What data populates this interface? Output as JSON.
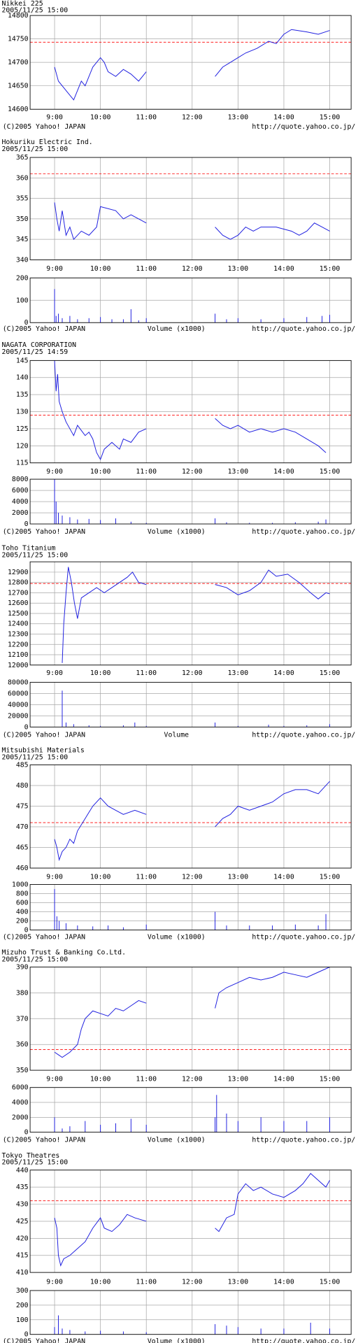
{
  "chart_data": [
    {
      "type": "line",
      "title": "Nikkei 225",
      "subtitle": "2005/11/25 15:00",
      "copyright": "(C)2005 Yahoo! JAPAN",
      "url": "http://quote.yahoo.co.jp/",
      "grid": true,
      "color": "#2020e0",
      "reference": 14743,
      "reference_color": "#ff0000",
      "xlim": [
        508,
        928
      ],
      "xticks": [
        {
          "value": 540,
          "label": "9:00"
        },
        {
          "value": 600,
          "label": "10:00"
        },
        {
          "value": 660,
          "label": "11:00"
        },
        {
          "value": 720,
          "label": "12:00"
        },
        {
          "value": 780,
          "label": "13:00"
        },
        {
          "value": 840,
          "label": "14:00"
        },
        {
          "value": 900,
          "label": "15:00"
        }
      ],
      "ylim": [
        14600,
        14800
      ],
      "yticks": [
        14600,
        14650,
        14700,
        14750,
        14800
      ],
      "x": [
        540,
        545,
        555,
        565,
        575,
        580,
        590,
        600,
        605,
        610,
        620,
        630,
        640,
        650,
        655,
        660,
        720,
        750,
        760,
        770,
        780,
        790,
        805,
        820,
        830,
        840,
        850,
        870,
        885,
        900
      ],
      "values": [
        14690,
        14660,
        14640,
        14620,
        14660,
        14650,
        14690,
        14710,
        14700,
        14680,
        14670,
        14685,
        14675,
        14660,
        14670,
        14680,
        null,
        14670,
        14690,
        14700,
        14710,
        14720,
        14730,
        14745,
        14740,
        14760,
        14770,
        14765,
        14760,
        14768
      ]
    },
    {
      "type": "line",
      "title": "Hokuriku Electric Ind.",
      "subtitle": "2005/11/25 15:00",
      "copyright": "(C)2005 Yahoo! JAPAN",
      "url": "http://quote.yahoo.co.jp/",
      "grid": true,
      "color": "#2020e0",
      "reference": 361,
      "reference_color": "#ff0000",
      "xlim": [
        508,
        928
      ],
      "xticks": [
        {
          "value": 540,
          "label": "9:00"
        },
        {
          "value": 600,
          "label": "10:00"
        },
        {
          "value": 660,
          "label": "11:00"
        },
        {
          "value": 720,
          "label": "12:00"
        },
        {
          "value": 780,
          "label": "13:00"
        },
        {
          "value": 840,
          "label": "14:00"
        },
        {
          "value": 900,
          "label": "15:00"
        }
      ],
      "ylim": [
        340,
        365
      ],
      "yticks": [
        340,
        345,
        350,
        355,
        360,
        365
      ],
      "x": [
        540,
        543,
        546,
        550,
        555,
        560,
        565,
        575,
        585,
        595,
        600,
        620,
        630,
        640,
        650,
        660,
        720,
        750,
        760,
        770,
        780,
        790,
        800,
        810,
        830,
        850,
        860,
        870,
        880,
        890,
        900
      ],
      "values": [
        354,
        350,
        347,
        352,
        346,
        348,
        345,
        347,
        346,
        348,
        353,
        352,
        350,
        351,
        350,
        349,
        null,
        348,
        346,
        345,
        346,
        348,
        347,
        348,
        348,
        347,
        346,
        347,
        349,
        348,
        347
      ],
      "volume": {
        "type": "bar",
        "label": "Volume (x1000)",
        "color": "#2020e0",
        "ylim": [
          0,
          200
        ],
        "yticks": [
          0,
          100,
          200
        ],
        "x": [
          540,
          542,
          545,
          550,
          560,
          570,
          585,
          600,
          615,
          630,
          640,
          650,
          660,
          750,
          765,
          780,
          810,
          840,
          870,
          890,
          900
        ],
        "values": [
          150,
          30,
          40,
          20,
          30,
          15,
          20,
          25,
          15,
          15,
          60,
          10,
          20,
          40,
          15,
          20,
          15,
          20,
          25,
          30,
          35
        ]
      }
    },
    {
      "type": "line",
      "title": "NAGATA CORPORATION",
      "subtitle": "2005/11/25 14:59",
      "copyright": "(C)2005 Yahoo! JAPAN",
      "url": "http://quote.yahoo.co.jp/",
      "grid": true,
      "color": "#2020e0",
      "reference": 129,
      "reference_color": "#ff0000",
      "xlim": [
        508,
        928
      ],
      "xticks": [
        {
          "value": 540,
          "label": "9:00"
        },
        {
          "value": 600,
          "label": "10:00"
        },
        {
          "value": 660,
          "label": "11:00"
        },
        {
          "value": 720,
          "label": "12:00"
        },
        {
          "value": 780,
          "label": "13:00"
        },
        {
          "value": 840,
          "label": "14:00"
        },
        {
          "value": 900,
          "label": "15:00"
        }
      ],
      "ylim": [
        115,
        145
      ],
      "yticks": [
        115,
        120,
        125,
        130,
        135,
        140,
        145
      ],
      "x": [
        540,
        542,
        544,
        546,
        550,
        555,
        560,
        565,
        570,
        580,
        585,
        590,
        595,
        600,
        605,
        615,
        625,
        630,
        640,
        650,
        660,
        720,
        750,
        760,
        770,
        780,
        795,
        810,
        825,
        840,
        855,
        870,
        885,
        895
      ],
      "values": [
        145,
        136,
        141,
        133,
        130,
        127,
        125,
        123,
        126,
        123,
        124,
        122,
        118,
        116,
        119,
        121,
        119,
        122,
        121,
        124,
        125,
        null,
        128,
        126,
        125,
        126,
        124,
        125,
        124,
        125,
        124,
        122,
        120,
        118
      ],
      "volume": {
        "type": "bar",
        "label": "Volume (x1000)",
        "color": "#2020e0",
        "ylim": [
          0,
          8000
        ],
        "yticks": [
          0,
          2000,
          4000,
          6000,
          8000
        ],
        "x": [
          540,
          542,
          545,
          550,
          560,
          570,
          585,
          600,
          620,
          640,
          660,
          750,
          765,
          795,
          825,
          855,
          885,
          895
        ],
        "values": [
          8000,
          4000,
          2000,
          1500,
          1200,
          800,
          900,
          700,
          1000,
          400,
          200,
          1000,
          300,
          200,
          200,
          300,
          400,
          800
        ]
      }
    },
    {
      "type": "line",
      "title": "Toho Titanium",
      "subtitle": "2005/11/25 15:00",
      "copyright": "(C)2005 Yahoo! JAPAN",
      "url": "http://quote.yahoo.co.jp/",
      "grid": true,
      "color": "#2020e0",
      "reference": 12790,
      "reference_color": "#ff0000",
      "xlim": [
        508,
        928
      ],
      "xticks": [
        {
          "value": 540,
          "label": "9:00"
        },
        {
          "value": 600,
          "label": "10:00"
        },
        {
          "value": 660,
          "label": "11:00"
        },
        {
          "value": 720,
          "label": "12:00"
        },
        {
          "value": 780,
          "label": "13:00"
        },
        {
          "value": 840,
          "label": "14:00"
        },
        {
          "value": 900,
          "label": "15:00"
        }
      ],
      "ylim": [
        12000,
        13000
      ],
      "yticks": [
        12000,
        12100,
        12200,
        12300,
        12400,
        12500,
        12600,
        12700,
        12800,
        12900
      ],
      "x": [
        550,
        552,
        555,
        558,
        562,
        566,
        570,
        575,
        585,
        595,
        605,
        615,
        625,
        635,
        642,
        650,
        660,
        720,
        750,
        765,
        780,
        795,
        810,
        820,
        830,
        845,
        860,
        875,
        885,
        895,
        900
      ],
      "values": [
        12020,
        12400,
        12700,
        12950,
        12800,
        12600,
        12450,
        12650,
        12700,
        12750,
        12700,
        12750,
        12800,
        12850,
        12900,
        12800,
        12780,
        null,
        12780,
        12750,
        12680,
        12720,
        12800,
        12920,
        12860,
        12880,
        12800,
        12700,
        12640,
        12700,
        12690
      ],
      "volume": {
        "type": "bar",
        "label": "Volume",
        "color": "#2020e0",
        "ylim": [
          0,
          80000
        ],
        "yticks": [
          0,
          20000,
          40000,
          60000,
          80000
        ],
        "x": [
          550,
          555,
          565,
          585,
          600,
          630,
          645,
          660,
          750,
          780,
          820,
          840,
          870,
          900
        ],
        "values": [
          65000,
          8000,
          5000,
          3000,
          2000,
          3000,
          8000,
          2000,
          8000,
          2000,
          4000,
          2000,
          3000,
          5000
        ]
      }
    },
    {
      "type": "line",
      "title": "Mitsubishi Materials",
      "subtitle": "2005/11/25 15:00",
      "copyright": "(C)2005 Yahoo! JAPAN",
      "url": "http://quote.yahoo.co.jp/",
      "grid": true,
      "color": "#2020e0",
      "reference": 471,
      "reference_color": "#ff0000",
      "xlim": [
        508,
        928
      ],
      "xticks": [
        {
          "value": 540,
          "label": "9:00"
        },
        {
          "value": 600,
          "label": "10:00"
        },
        {
          "value": 660,
          "label": "11:00"
        },
        {
          "value": 720,
          "label": "12:00"
        },
        {
          "value": 780,
          "label": "13:00"
        },
        {
          "value": 840,
          "label": "14:00"
        },
        {
          "value": 900,
          "label": "15:00"
        }
      ],
      "ylim": [
        460,
        485
      ],
      "yticks": [
        460,
        465,
        470,
        475,
        480,
        485
      ],
      "x": [
        540,
        543,
        546,
        550,
        555,
        560,
        565,
        570,
        580,
        590,
        600,
        610,
        620,
        630,
        645,
        660,
        720,
        750,
        760,
        770,
        780,
        795,
        810,
        825,
        840,
        855,
        870,
        885,
        895,
        900
      ],
      "values": [
        467,
        465,
        462,
        464,
        465,
        467,
        466,
        469,
        472,
        475,
        477,
        475,
        474,
        473,
        474,
        473,
        null,
        470,
        472,
        473,
        475,
        474,
        475,
        476,
        478,
        479,
        479,
        478,
        480,
        481
      ],
      "volume": {
        "type": "bar",
        "label": "Volume (x1000)",
        "color": "#2020e0",
        "ylim": [
          0,
          1000
        ],
        "yticks": [
          0,
          200,
          400,
          600,
          800,
          1000
        ],
        "x": [
          540,
          543,
          546,
          555,
          570,
          590,
          610,
          630,
          660,
          750,
          765,
          795,
          825,
          855,
          885,
          895
        ],
        "values": [
          900,
          300,
          200,
          150,
          100,
          80,
          100,
          60,
          120,
          400,
          100,
          100,
          100,
          120,
          100,
          350
        ]
      }
    },
    {
      "type": "line",
      "title": "Mizuho Trust & Banking Co.Ltd.",
      "subtitle": "2005/11/25 15:00",
      "copyright": "(C)2005 Yahoo! JAPAN",
      "url": "http://quote.yahoo.co.jp/",
      "grid": true,
      "color": "#2020e0",
      "reference": 358,
      "reference_color": "#ff0000",
      "xlim": [
        508,
        928
      ],
      "xticks": [
        {
          "value": 540,
          "label": "9:00"
        },
        {
          "value": 600,
          "label": "10:00"
        },
        {
          "value": 660,
          "label": "11:00"
        },
        {
          "value": 720,
          "label": "12:00"
        },
        {
          "value": 780,
          "label": "13:00"
        },
        {
          "value": 840,
          "label": "14:00"
        },
        {
          "value": 900,
          "label": "15:00"
        }
      ],
      "ylim": [
        350,
        390
      ],
      "yticks": [
        350,
        360,
        370,
        380,
        390
      ],
      "x": [
        540,
        545,
        550,
        560,
        570,
        575,
        580,
        590,
        600,
        610,
        620,
        630,
        640,
        650,
        660,
        720,
        750,
        755,
        765,
        780,
        795,
        810,
        825,
        840,
        855,
        870,
        885,
        900
      ],
      "values": [
        357,
        356,
        355,
        357,
        360,
        366,
        370,
        373,
        372,
        371,
        374,
        373,
        375,
        377,
        376,
        null,
        374,
        380,
        382,
        384,
        386,
        385,
        386,
        388,
        387,
        386,
        388,
        390
      ],
      "volume": {
        "type": "bar",
        "label": "Volume (x1000)",
        "color": "#2020e0",
        "ylim": [
          0,
          6000
        ],
        "yticks": [
          0,
          2000,
          4000,
          6000
        ],
        "x": [
          540,
          550,
          560,
          580,
          600,
          620,
          640,
          660,
          750,
          752,
          765,
          780,
          810,
          840,
          870,
          900
        ],
        "values": [
          2000,
          500,
          800,
          1500,
          1000,
          1200,
          1800,
          1000,
          2000,
          5000,
          2500,
          1500,
          2000,
          1500,
          1500,
          2000
        ]
      }
    },
    {
      "type": "line",
      "title": "Tokyo Theatres",
      "subtitle": "2005/11/25 15:00",
      "copyright": "(C)2005 Yahoo! JAPAN",
      "url": "http://quote.yahoo.co.jp/",
      "grid": true,
      "color": "#2020e0",
      "reference": 431,
      "reference_color": "#ff0000",
      "xlim": [
        508,
        928
      ],
      "xticks": [
        {
          "value": 540,
          "label": "9:00"
        },
        {
          "value": 600,
          "label": "10:00"
        },
        {
          "value": 660,
          "label": "11:00"
        },
        {
          "value": 720,
          "label": "12:00"
        },
        {
          "value": 780,
          "label": "13:00"
        },
        {
          "value": 840,
          "label": "14:00"
        },
        {
          "value": 900,
          "label": "15:00"
        }
      ],
      "ylim": [
        410,
        440
      ],
      "yticks": [
        410,
        415,
        420,
        425,
        430,
        435,
        440
      ],
      "x": [
        540,
        543,
        545,
        548,
        552,
        560,
        570,
        580,
        590,
        600,
        605,
        615,
        625,
        635,
        645,
        660,
        720,
        750,
        755,
        765,
        775,
        780,
        790,
        800,
        810,
        825,
        840,
        855,
        865,
        875,
        885,
        895,
        900
      ],
      "values": [
        426,
        423,
        415,
        412,
        414,
        415,
        417,
        419,
        423,
        426,
        423,
        422,
        424,
        427,
        426,
        425,
        null,
        423,
        422,
        426,
        427,
        433,
        436,
        434,
        435,
        433,
        432,
        434,
        436,
        439,
        437,
        435,
        437
      ],
      "volume": {
        "type": "bar",
        "label": "Volume (x1000)",
        "color": "#2020e0",
        "ylim": [
          0,
          300
        ],
        "yticks": [
          0,
          100,
          200,
          300
        ],
        "x": [
          540,
          545,
          550,
          560,
          580,
          600,
          630,
          660,
          750,
          765,
          780,
          810,
          840,
          875,
          900
        ],
        "values": [
          50,
          130,
          40,
          30,
          20,
          25,
          20,
          15,
          70,
          60,
          50,
          40,
          40,
          80,
          40
        ]
      }
    }
  ]
}
